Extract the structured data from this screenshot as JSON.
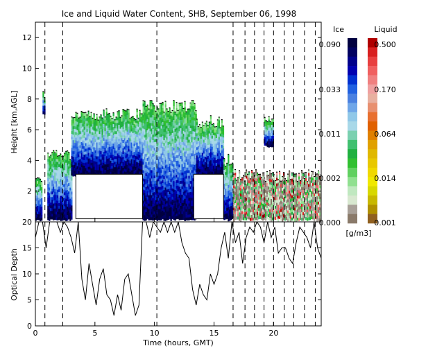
{
  "chart_data": [
    {
      "type": "heatmap",
      "title": "Ice and Liquid Water Content, SHB, September 06, 1998",
      "xlabel": "",
      "ylabel": "Height [km,AGL]",
      "xlim": [
        0,
        24
      ],
      "ylim": [
        0,
        13
      ],
      "yticks": [
        "2",
        "4",
        "6",
        "8",
        "10",
        "12"
      ],
      "dashed_time_markers": [
        0.8,
        2.3,
        10.2,
        16.6,
        17.6,
        18.4,
        19.2,
        20.0,
        20.9,
        21.7,
        22.6,
        23.5
      ],
      "cloud_regions": [
        {
          "start": 0.0,
          "end": 0.5,
          "top": 2.8,
          "base": 0.2,
          "phase": "ice"
        },
        {
          "start": 0.6,
          "end": 0.8,
          "top": 8.1,
          "base": 7.1,
          "phase": "ice"
        },
        {
          "start": 1.0,
          "end": 3.0,
          "top": 4.3,
          "base": 0.2,
          "phase": "ice"
        },
        {
          "start": 3.0,
          "end": 9.0,
          "top": 7.0,
          "base": 3.1,
          "phase": "ice"
        },
        {
          "start": 9.0,
          "end": 13.5,
          "top": 7.5,
          "base": 0.2,
          "phase": "ice"
        },
        {
          "start": 13.5,
          "end": 15.8,
          "top": 6.5,
          "base": 3.1,
          "phase": "ice"
        },
        {
          "start": 15.8,
          "end": 16.6,
          "top": 4.0,
          "base": 0.2,
          "phase": "ice"
        },
        {
          "start": 16.6,
          "end": 24.0,
          "top": 3.0,
          "base": 0.2,
          "phase": "liquid"
        },
        {
          "start": 19.2,
          "end": 20.0,
          "top": 6.6,
          "base": 5.0,
          "phase": "ice"
        }
      ],
      "no_data_gaps": [
        {
          "start": 3.4,
          "end": 9.0,
          "base": 0.2,
          "top": 3.1
        },
        {
          "start": 13.3,
          "end": 15.8,
          "base": 0.2,
          "top": 3.1
        }
      ]
    },
    {
      "type": "line",
      "title": "",
      "xlabel": "Time (hours, GMT)",
      "ylabel": "Optical Depth",
      "xlim": [
        0,
        24
      ],
      "ylim": [
        0,
        20
      ],
      "xticks": [
        "0",
        "5",
        "10",
        "15",
        "20"
      ],
      "yticks": [
        "0",
        "5",
        "10",
        "15",
        "20"
      ],
      "x": [
        0,
        0.3,
        0.6,
        0.9,
        1.2,
        1.5,
        1.8,
        2.1,
        2.4,
        2.7,
        3.0,
        3.3,
        3.6,
        3.9,
        4.2,
        4.5,
        4.8,
        5.1,
        5.4,
        5.7,
        6.0,
        6.3,
        6.6,
        6.9,
        7.2,
        7.5,
        7.8,
        8.1,
        8.4,
        8.7,
        9.0,
        9.3,
        9.6,
        9.9,
        10.2,
        10.5,
        10.8,
        11.1,
        11.4,
        11.7,
        12.0,
        12.3,
        12.6,
        12.9,
        13.2,
        13.5,
        13.8,
        14.1,
        14.4,
        14.7,
        15.0,
        15.3,
        15.6,
        15.9,
        16.2,
        16.5,
        16.8,
        17.1,
        17.4,
        17.7,
        18.0,
        18.3,
        18.6,
        18.9,
        19.2,
        19.5,
        19.8,
        20.1,
        20.4,
        20.7,
        21.0,
        21.3,
        21.6,
        21.9,
        22.2,
        22.5,
        22.8,
        23.1,
        23.4,
        23.7,
        24.0
      ],
      "y": [
        17,
        20,
        20,
        15,
        20,
        20,
        20,
        18,
        20,
        19,
        17,
        14,
        20,
        9,
        5,
        12,
        8,
        4,
        9,
        11,
        6,
        5,
        2,
        6,
        3,
        9,
        10,
        6,
        2,
        4,
        20,
        20,
        17,
        20,
        19,
        18,
        20,
        18,
        20,
        18,
        20,
        16,
        14,
        13,
        7,
        4,
        8,
        6,
        5,
        10,
        8,
        10,
        15,
        18,
        13,
        20,
        16,
        18,
        12,
        17,
        19,
        18,
        20,
        19,
        16,
        20,
        17,
        19,
        14,
        15,
        15,
        13,
        12,
        16,
        19,
        18,
        17,
        15,
        20,
        15,
        13
      ]
    }
  ],
  "colorbar": {
    "ice_label": "Ice",
    "liquid_label": "Liquid",
    "unit": "[g/m3]",
    "ice_ticks": [
      "0.090",
      "0.033",
      "0.011",
      "0.002",
      "0.000"
    ],
    "liquid_ticks": [
      "0.500",
      "0.170",
      "0.064",
      "0.014",
      "0.001"
    ],
    "ice_colors": [
      "#000040",
      "#000060",
      "#00008b",
      "#0000b0",
      "#0030d0",
      "#2060e0",
      "#4a80e0",
      "#6fa6e8",
      "#90c8e8",
      "#a8d8e8",
      "#7ad0b0",
      "#40c070",
      "#20b040",
      "#30c030",
      "#60d060",
      "#90e090",
      "#c0e8c0",
      "#d8e8d0",
      "#a8a098",
      "#8a7a6a"
    ],
    "liquid_colors": [
      "#b00000",
      "#d82020",
      "#e84040",
      "#f06060",
      "#f08080",
      "#f0a0a0",
      "#e8b0a0",
      "#e89070",
      "#e87030",
      "#e06000",
      "#e08000",
      "#e0a000",
      "#e0b800",
      "#e8c800",
      "#f0d800",
      "#f0e800",
      "#d8d800",
      "#c8b800",
      "#b09000",
      "#906020"
    ]
  }
}
